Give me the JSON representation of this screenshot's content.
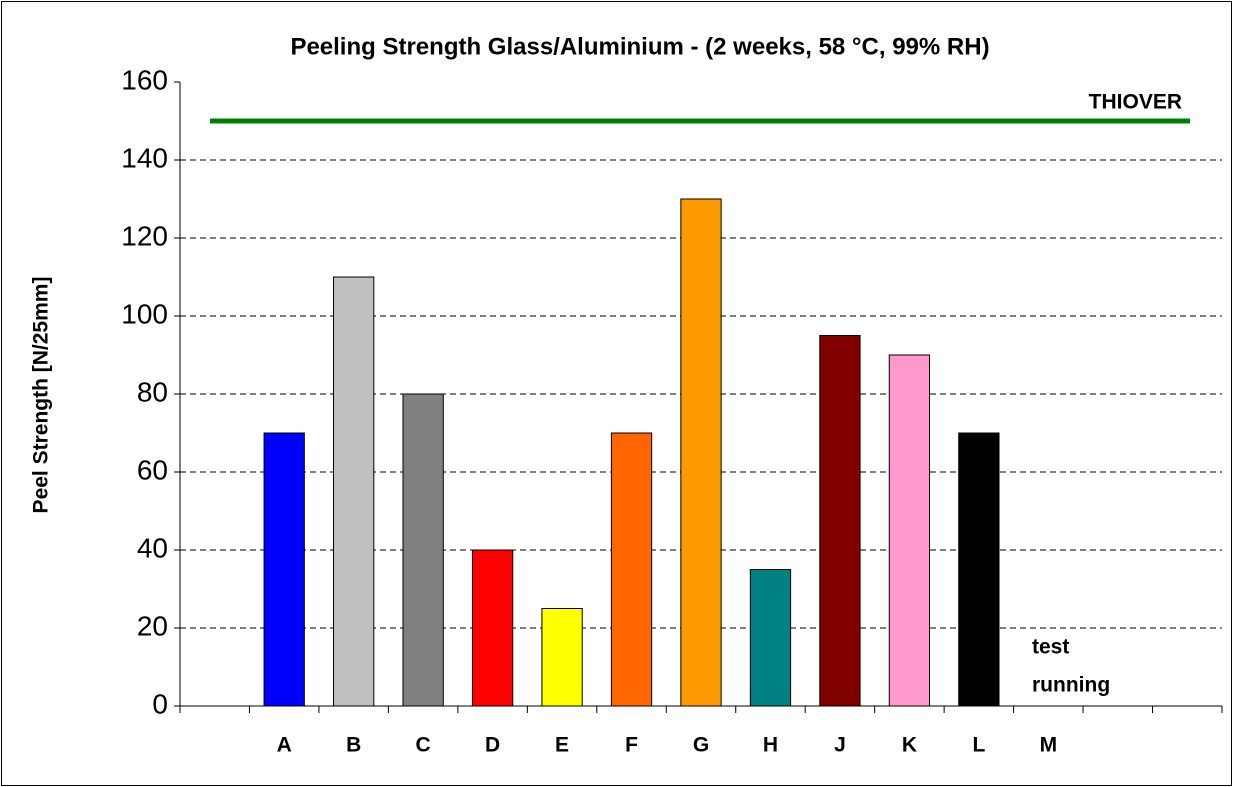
{
  "chart_data": {
    "type": "bar",
    "title": "Peeling Strength Glass/Aluminium - (2 weeks, 58 °C, 99% RH)",
    "y_label": "Peel Strength [N/25mm]",
    "categories": [
      null,
      "A",
      "B",
      "C",
      "D",
      "E",
      "F",
      "G",
      "H",
      "J",
      "K",
      "L",
      "M",
      null,
      null
    ],
    "values": [
      null,
      70,
      110,
      80,
      40,
      25,
      70,
      130,
      35,
      95,
      90,
      70,
      null,
      null,
      null
    ],
    "colors": [
      null,
      "#0000ff",
      "#c0c0c0",
      "#808080",
      "#ff0000",
      "#ffff00",
      "#ff6600",
      "#ff9900",
      "#008080",
      "#800000",
      "#ff99cc",
      "#000000",
      null,
      null,
      null
    ],
    "ylim": [
      0,
      160
    ],
    "yticks": [
      0,
      20,
      40,
      60,
      80,
      100,
      120,
      140,
      160
    ],
    "grid": true,
    "reference": {
      "label": "THIOVER",
      "value": 150,
      "color": "#008000"
    },
    "annotation": [
      "test",
      "running"
    ]
  }
}
